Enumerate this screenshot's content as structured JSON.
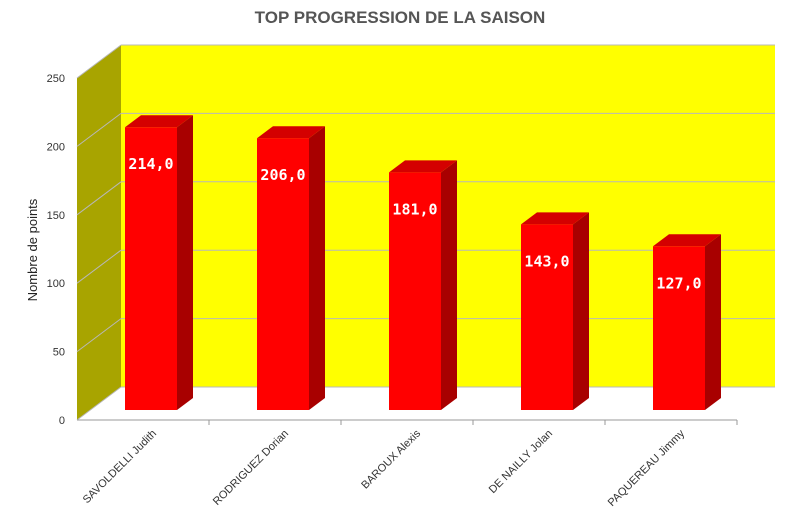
{
  "chart_data": {
    "type": "bar",
    "title": "TOP PROGRESSION DE LA SAISON",
    "ylabel": "Nombre de points",
    "xlabel": "",
    "ylim": [
      0,
      250
    ],
    "yticks": [
      "0",
      "50",
      "100",
      "150",
      "200",
      "250"
    ],
    "categories": [
      "SAVOLDELLI Judith",
      "RODRIGUEZ Dorian",
      "BAROUX Alexis",
      "DE NAILLY Jolan",
      "PAQUEREAU Jimmy"
    ],
    "values": [
      214.0,
      206.0,
      181.0,
      143.0,
      127.0
    ],
    "data_labels": [
      "214,0",
      "206,0",
      "181,0",
      "143,0",
      "127,0"
    ],
    "style": "3d-column",
    "grid": true,
    "colors": {
      "back_wall": "#ffff00",
      "side_wall": "#a8a400",
      "bar_front": "#ff0000",
      "bar_side": "#a80000",
      "bar_top": "#d40000",
      "grid": "#b8b8b8",
      "title": "#555555"
    }
  }
}
